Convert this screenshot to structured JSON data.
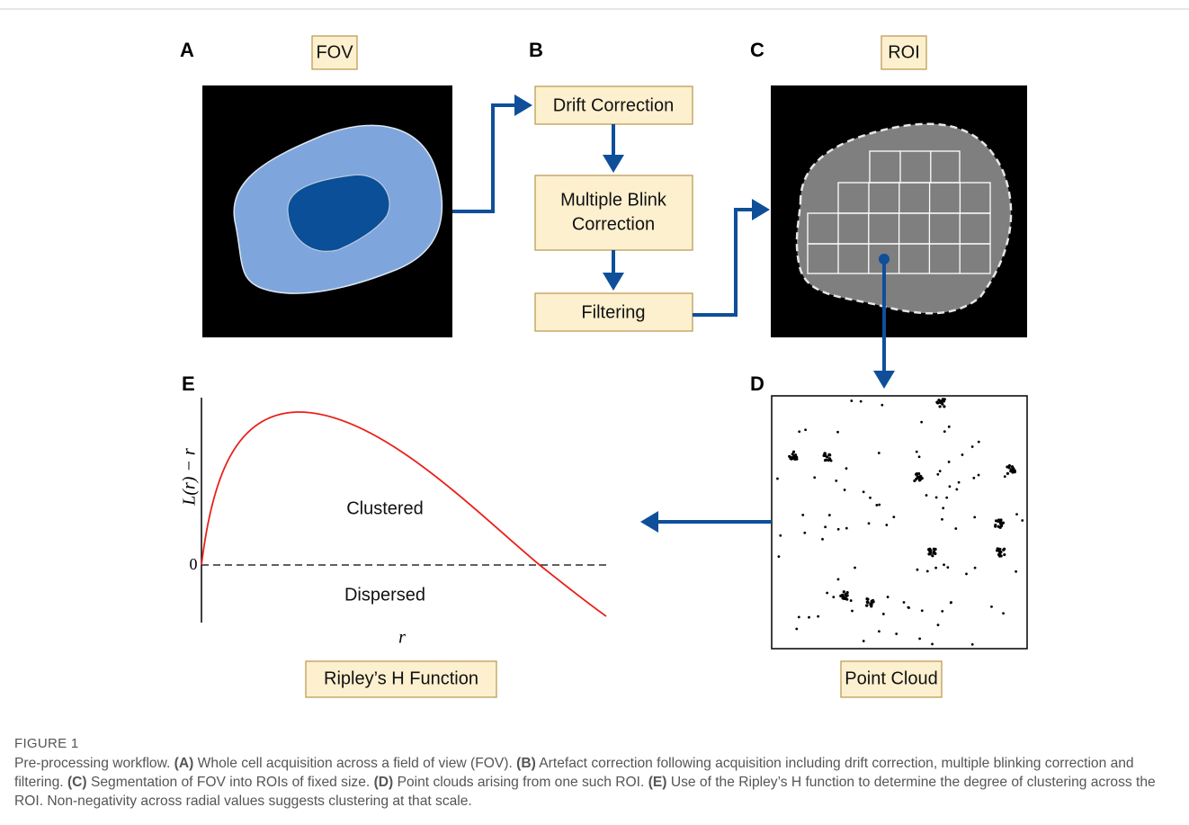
{
  "panels": {
    "a": {
      "label": "A",
      "title": "FOV"
    },
    "b": {
      "label": "B",
      "steps": [
        [
          "Drift Correction"
        ],
        [
          "Multiple Blink",
          "Correction"
        ],
        [
          "Filtering"
        ]
      ]
    },
    "c": {
      "label": "C",
      "title": "ROI"
    },
    "d": {
      "label": "D",
      "title": "Point Cloud"
    },
    "e": {
      "label": "E",
      "title": "Ripley’s H Function",
      "y_axis": "L(r) − r",
      "x_axis": "r",
      "zero": "0",
      "above": "Clustered",
      "below": "Dispersed"
    }
  },
  "caption": {
    "figure": "FIGURE 1",
    "intro": "Pre-processing workflow.",
    "items": [
      {
        "label": "(A)",
        "text": "Whole cell acquisition across a field of view (FOV)."
      },
      {
        "label": "(B)",
        "text": "Artefact correction following acquisition including drift correction, multiple blinking correction and filtering."
      },
      {
        "label": "(C)",
        "text": "Segmentation of FOV into ROIs of fixed size."
      },
      {
        "label": "(D)",
        "text": "Point clouds arising from one such ROI."
      },
      {
        "label": "(E)",
        "text": "Use of the Ripley’s H function to determine the degree of clustering across the ROI. Non-negativity across radial values suggests clustering at that scale."
      }
    ]
  }
}
